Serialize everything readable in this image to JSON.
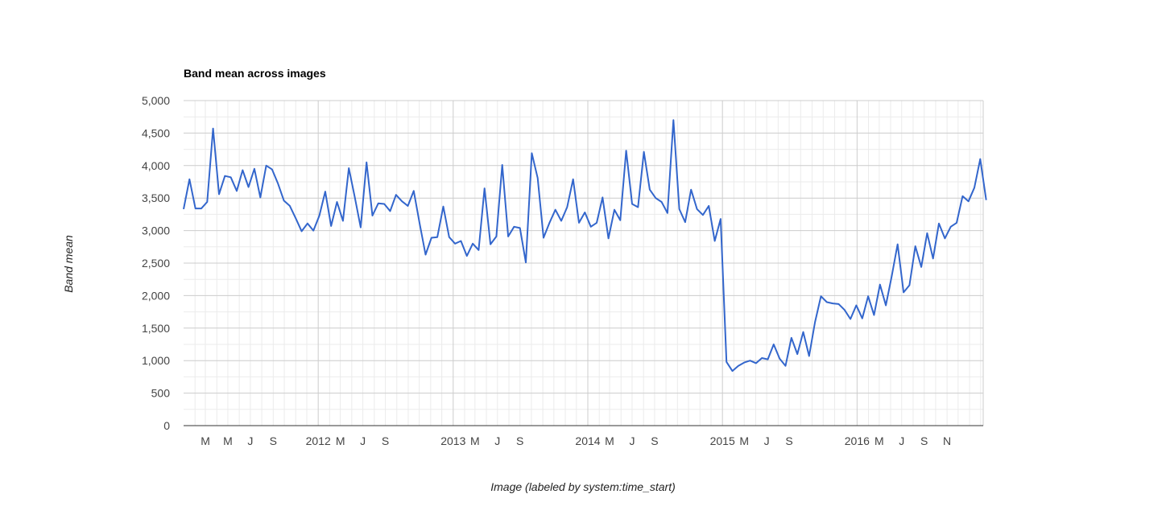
{
  "chart_data": {
    "type": "line",
    "title": "Band mean across images",
    "xlabel": "Image (labeled by system:time_start)",
    "ylabel": "Band mean",
    "ylim": [
      0,
      5000
    ],
    "y_ticks": [
      "0",
      "500",
      "1,000",
      "1,500",
      "2,000",
      "2,500",
      "3,000",
      "3,500",
      "4,000",
      "4,500",
      "5,000"
    ],
    "y_tick_values": [
      0,
      500,
      1000,
      1500,
      2000,
      2500,
      3000,
      3500,
      4000,
      4500,
      5000
    ],
    "xlim": [
      "2011-01-01",
      "2016-12-08"
    ],
    "x_ticks": [
      {
        "date": "2011-03-01",
        "label": "M"
      },
      {
        "date": "2011-05-01",
        "label": "M"
      },
      {
        "date": "2011-07-01",
        "label": "J"
      },
      {
        "date": "2011-09-01",
        "label": "S"
      },
      {
        "date": "2012-01-01",
        "label": "2012"
      },
      {
        "date": "2012-03-01",
        "label": "M"
      },
      {
        "date": "2012-05-01",
        "label": "J"
      },
      {
        "date": "2012-07-01",
        "label": "S"
      },
      {
        "date": "2013-01-01",
        "label": "2013"
      },
      {
        "date": "2013-03-01",
        "label": "M"
      },
      {
        "date": "2013-05-01",
        "label": "J"
      },
      {
        "date": "2013-07-01",
        "label": "S"
      },
      {
        "date": "2014-01-01",
        "label": "2014"
      },
      {
        "date": "2014-03-01",
        "label": "M"
      },
      {
        "date": "2014-05-01",
        "label": "J"
      },
      {
        "date": "2014-07-01",
        "label": "S"
      },
      {
        "date": "2015-01-01",
        "label": "2015"
      },
      {
        "date": "2015-03-01",
        "label": "M"
      },
      {
        "date": "2015-05-01",
        "label": "J"
      },
      {
        "date": "2015-07-01",
        "label": "S"
      },
      {
        "date": "2016-01-01",
        "label": "2016"
      },
      {
        "date": "2016-03-01",
        "label": "M"
      },
      {
        "date": "2016-05-01",
        "label": "J"
      },
      {
        "date": "2016-07-01",
        "label": "S"
      },
      {
        "date": "2016-09-01",
        "label": "N"
      }
    ],
    "grid": true,
    "legend": "none",
    "series": [
      {
        "color": "#3366cc",
        "points": [
          [
            "2011-01-01",
            3330
          ],
          [
            "2011-01-17",
            3790
          ],
          [
            "2011-02-02",
            3340
          ],
          [
            "2011-02-18",
            3340
          ],
          [
            "2011-03-06",
            3440
          ],
          [
            "2011-03-22",
            4570
          ],
          [
            "2011-04-07",
            3560
          ],
          [
            "2011-04-23",
            3840
          ],
          [
            "2011-05-09",
            3820
          ],
          [
            "2011-05-25",
            3610
          ],
          [
            "2011-06-10",
            3930
          ],
          [
            "2011-06-26",
            3670
          ],
          [
            "2011-07-12",
            3950
          ],
          [
            "2011-07-28",
            3510
          ],
          [
            "2011-08-13",
            4000
          ],
          [
            "2011-08-29",
            3940
          ],
          [
            "2011-09-14",
            3720
          ],
          [
            "2011-09-30",
            3460
          ],
          [
            "2011-10-16",
            3380
          ],
          [
            "2011-11-01",
            3190
          ],
          [
            "2011-11-17",
            2990
          ],
          [
            "2011-12-03",
            3110
          ],
          [
            "2011-12-19",
            3000
          ],
          [
            "2012-01-04",
            3230
          ],
          [
            "2012-01-20",
            3600
          ],
          [
            "2012-02-05",
            3070
          ],
          [
            "2012-02-21",
            3440
          ],
          [
            "2012-03-08",
            3150
          ],
          [
            "2012-03-24",
            3960
          ],
          [
            "2012-04-09",
            3520
          ],
          [
            "2012-04-25",
            3050
          ],
          [
            "2012-05-11",
            4050
          ],
          [
            "2012-05-27",
            3230
          ],
          [
            "2012-06-12",
            3420
          ],
          [
            "2012-06-28",
            3410
          ],
          [
            "2012-07-14",
            3300
          ],
          [
            "2012-07-30",
            3550
          ],
          [
            "2012-08-15",
            3450
          ],
          [
            "2012-08-31",
            3380
          ],
          [
            "2012-09-16",
            3610
          ],
          [
            "2012-10-02",
            3110
          ],
          [
            "2012-10-18",
            2630
          ],
          [
            "2012-11-03",
            2890
          ],
          [
            "2012-11-19",
            2900
          ],
          [
            "2012-12-05",
            3370
          ],
          [
            "2012-12-21",
            2900
          ],
          [
            "2013-01-06",
            2800
          ],
          [
            "2013-01-22",
            2840
          ],
          [
            "2013-02-07",
            2610
          ],
          [
            "2013-02-23",
            2800
          ],
          [
            "2013-03-11",
            2700
          ],
          [
            "2013-03-27",
            3650
          ],
          [
            "2013-04-12",
            2790
          ],
          [
            "2013-04-28",
            2910
          ],
          [
            "2013-05-14",
            4010
          ],
          [
            "2013-05-30",
            2910
          ],
          [
            "2013-06-15",
            3060
          ],
          [
            "2013-07-01",
            3040
          ],
          [
            "2013-07-17",
            2510
          ],
          [
            "2013-08-02",
            4190
          ],
          [
            "2013-08-18",
            3810
          ],
          [
            "2013-09-03",
            2890
          ],
          [
            "2013-09-19",
            3120
          ],
          [
            "2013-10-05",
            3320
          ],
          [
            "2013-10-21",
            3150
          ],
          [
            "2013-11-06",
            3360
          ],
          [
            "2013-11-22",
            3790
          ],
          [
            "2013-12-08",
            3120
          ],
          [
            "2013-12-24",
            3280
          ],
          [
            "2014-01-09",
            3060
          ],
          [
            "2014-01-25",
            3120
          ],
          [
            "2014-02-10",
            3510
          ],
          [
            "2014-02-26",
            2880
          ],
          [
            "2014-03-14",
            3320
          ],
          [
            "2014-03-30",
            3160
          ],
          [
            "2014-04-15",
            4230
          ],
          [
            "2014-05-01",
            3410
          ],
          [
            "2014-05-17",
            3360
          ],
          [
            "2014-06-02",
            4210
          ],
          [
            "2014-06-18",
            3630
          ],
          [
            "2014-07-04",
            3500
          ],
          [
            "2014-07-20",
            3440
          ],
          [
            "2014-08-05",
            3270
          ],
          [
            "2014-08-21",
            4700
          ],
          [
            "2014-09-06",
            3330
          ],
          [
            "2014-09-22",
            3130
          ],
          [
            "2014-10-08",
            3630
          ],
          [
            "2014-10-24",
            3330
          ],
          [
            "2014-11-09",
            3240
          ],
          [
            "2014-11-25",
            3380
          ],
          [
            "2014-12-11",
            2840
          ],
          [
            "2014-12-27",
            3180
          ],
          [
            "2015-01-12",
            980
          ],
          [
            "2015-01-28",
            840
          ],
          [
            "2015-02-13",
            920
          ],
          [
            "2015-03-01",
            970
          ],
          [
            "2015-03-17",
            1000
          ],
          [
            "2015-04-02",
            960
          ],
          [
            "2015-04-18",
            1040
          ],
          [
            "2015-05-04",
            1020
          ],
          [
            "2015-05-20",
            1250
          ],
          [
            "2015-06-05",
            1030
          ],
          [
            "2015-06-21",
            920
          ],
          [
            "2015-07-07",
            1350
          ],
          [
            "2015-07-23",
            1100
          ],
          [
            "2015-08-08",
            1440
          ],
          [
            "2015-08-24",
            1070
          ],
          [
            "2015-09-09",
            1590
          ],
          [
            "2015-09-25",
            1990
          ],
          [
            "2015-10-11",
            1900
          ],
          [
            "2015-10-27",
            1880
          ],
          [
            "2015-11-12",
            1870
          ],
          [
            "2015-11-28",
            1780
          ],
          [
            "2015-12-14",
            1640
          ],
          [
            "2015-12-30",
            1850
          ],
          [
            "2016-01-15",
            1650
          ],
          [
            "2016-01-31",
            1990
          ],
          [
            "2016-02-16",
            1700
          ],
          [
            "2016-03-03",
            2170
          ],
          [
            "2016-03-19",
            1850
          ],
          [
            "2016-04-04",
            2300
          ],
          [
            "2016-04-20",
            2790
          ],
          [
            "2016-05-06",
            2050
          ],
          [
            "2016-05-22",
            2160
          ],
          [
            "2016-06-07",
            2760
          ],
          [
            "2016-06-23",
            2440
          ],
          [
            "2016-07-09",
            2960
          ],
          [
            "2016-07-25",
            2570
          ],
          [
            "2016-08-10",
            3110
          ],
          [
            "2016-08-26",
            2880
          ],
          [
            "2016-09-11",
            3060
          ],
          [
            "2016-09-27",
            3120
          ],
          [
            "2016-10-13",
            3530
          ],
          [
            "2016-10-29",
            3450
          ],
          [
            "2016-11-14",
            3660
          ],
          [
            "2016-11-30",
            4100
          ],
          [
            "2016-12-16",
            3470
          ]
        ]
      }
    ]
  }
}
